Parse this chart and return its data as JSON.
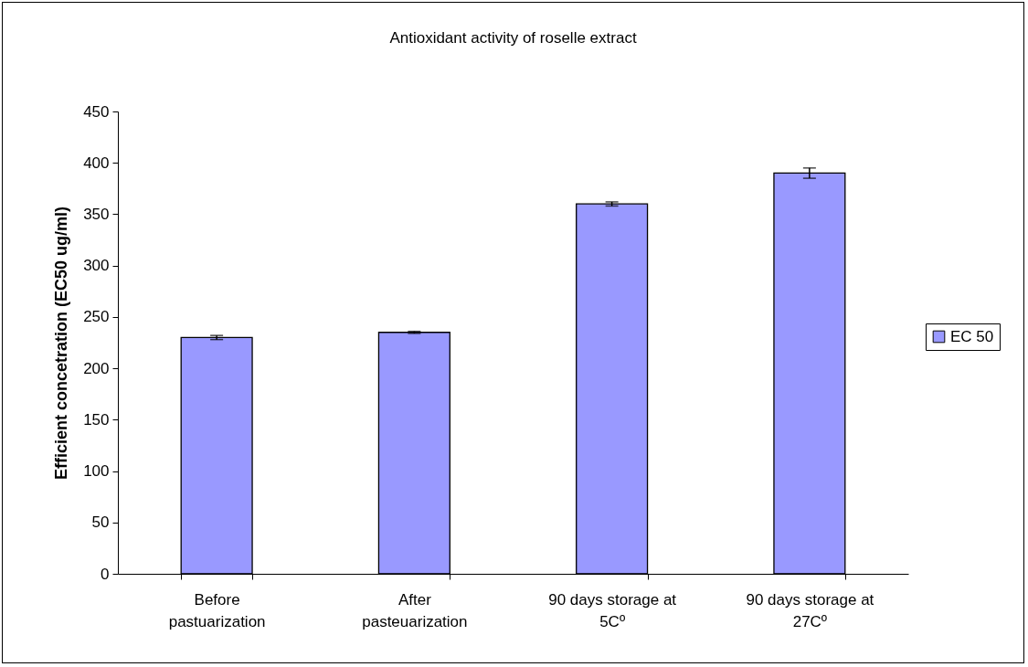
{
  "chart_data": {
    "type": "bar",
    "title": "Antioxidant activity of roselle extract",
    "ylabel": "Efficient concetration (EC50 ug/ml)",
    "categories": [
      "Before pastuarization",
      "After pasteuarization",
      "90 days storage at 5Cº",
      "90 days storage at 27Cº"
    ],
    "series": [
      {
        "name": "EC 50",
        "color": "#9999ff",
        "values": [
          230,
          235,
          360,
          390
        ],
        "errors": [
          2,
          1,
          2,
          5
        ]
      }
    ],
    "ylim": [
      0,
      450
    ],
    "yticks": [
      0,
      50,
      100,
      150,
      200,
      250,
      300,
      350,
      400,
      450
    ],
    "grid": false,
    "legend": "right"
  }
}
